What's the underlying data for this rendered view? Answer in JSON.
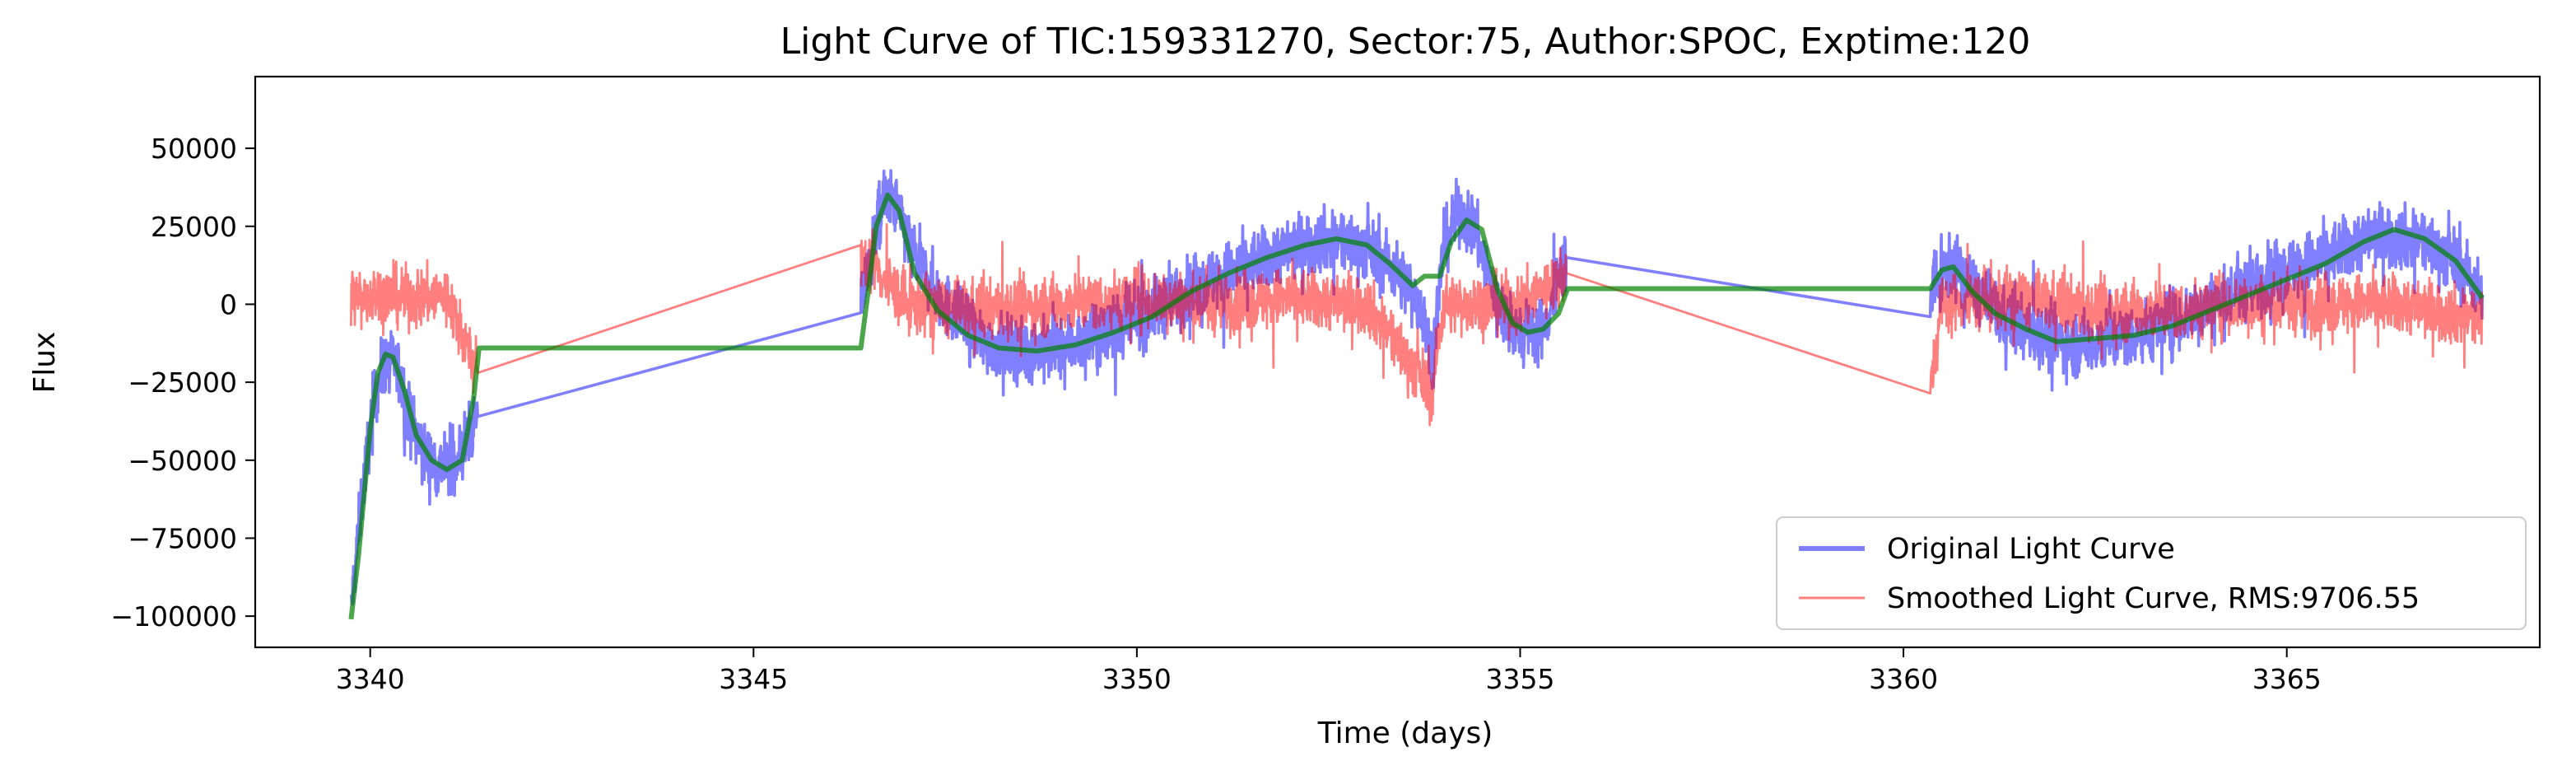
{
  "chart_data": {
    "type": "line",
    "title": "Light Curve of TIC:159331270, Sector:75, Author:SPOC, Exptime:120",
    "xlabel": "Time (days)",
    "ylabel": "Flux",
    "xlim": [
      3338.5,
      3368.3
    ],
    "ylim": [
      -110000,
      73000
    ],
    "xticks": [
      3340,
      3345,
      3350,
      3355,
      3360,
      3365
    ],
    "xtick_labels": [
      "3340",
      "3345",
      "3350",
      "3355",
      "3360",
      "3365"
    ],
    "yticks": [
      -100000,
      -75000,
      -50000,
      -25000,
      0,
      25000,
      50000
    ],
    "ytick_labels": [
      "−100000",
      "−75000",
      "−50000",
      "−25000",
      "0",
      "25000",
      "50000"
    ],
    "grid": false,
    "legend_position": "lower-right",
    "segments": [
      [
        3339.75,
        3341.4
      ],
      [
        3346.4,
        3355.6
      ],
      [
        3360.35,
        3367.55
      ]
    ],
    "series": [
      {
        "name": "Original Light Curve",
        "color": "#0000ff",
        "opacity": 0.5,
        "style": "noisy",
        "noise_amplitude": 9000,
        "trend": [
          [
            3339.75,
            -98000
          ],
          [
            3339.9,
            -60000
          ],
          [
            3340.05,
            -30000
          ],
          [
            3340.2,
            -18000
          ],
          [
            3340.35,
            -20000
          ],
          [
            3340.5,
            -35000
          ],
          [
            3340.7,
            -48000
          ],
          [
            3340.9,
            -52000
          ],
          [
            3341.1,
            -51000
          ],
          [
            3341.25,
            -45000
          ],
          [
            3341.4,
            -36000
          ],
          [
            3346.4,
            0
          ],
          [
            3346.55,
            18000
          ],
          [
            3346.7,
            34000
          ],
          [
            3346.85,
            32000
          ],
          [
            3347.1,
            15000
          ],
          [
            3347.5,
            0
          ],
          [
            3348.0,
            -12000
          ],
          [
            3348.5,
            -15000
          ],
          [
            3349.0,
            -14000
          ],
          [
            3349.5,
            -10000
          ],
          [
            3350.0,
            -5000
          ],
          [
            3350.5,
            2000
          ],
          [
            3351.0,
            8000
          ],
          [
            3351.5,
            13000
          ],
          [
            3352.0,
            18000
          ],
          [
            3352.5,
            21000
          ],
          [
            3353.0,
            18000
          ],
          [
            3353.4,
            10000
          ],
          [
            3353.7,
            0
          ],
          [
            3353.85,
            -18000
          ],
          [
            3354.0,
            18000
          ],
          [
            3354.2,
            30000
          ],
          [
            3354.4,
            25000
          ],
          [
            3354.7,
            0
          ],
          [
            3355.0,
            -10000
          ],
          [
            3355.3,
            -8000
          ],
          [
            3355.6,
            15000
          ],
          [
            3360.35,
            3000
          ],
          [
            3360.6,
            13000
          ],
          [
            3360.9,
            6000
          ],
          [
            3361.3,
            -5000
          ],
          [
            3361.8,
            -10000
          ],
          [
            3362.2,
            -13000
          ],
          [
            3362.8,
            -11000
          ],
          [
            3363.5,
            -6000
          ],
          [
            3364.2,
            2000
          ],
          [
            3364.8,
            9000
          ],
          [
            3365.5,
            15000
          ],
          [
            3366.1,
            22000
          ],
          [
            3366.7,
            21000
          ],
          [
            3367.2,
            14000
          ],
          [
            3367.55,
            3000
          ]
        ]
      },
      {
        "name": "Smoothed Light Curve, RMS:9706.55",
        "color": "#ff0000",
        "opacity": 0.5,
        "style": "noisy",
        "noise_amplitude": 8500,
        "trend": [
          [
            3339.75,
            2000
          ],
          [
            3340.0,
            3000
          ],
          [
            3340.5,
            2000
          ],
          [
            3341.0,
            3000
          ],
          [
            3341.4,
            -22000
          ],
          [
            3346.4,
            12000
          ],
          [
            3346.55,
            15000
          ],
          [
            3346.7,
            8000
          ],
          [
            3347.0,
            0
          ],
          [
            3348.0,
            -2000
          ],
          [
            3349.0,
            0
          ],
          [
            3350.0,
            2000
          ],
          [
            3351.0,
            0
          ],
          [
            3352.0,
            2000
          ],
          [
            3353.0,
            0
          ],
          [
            3353.85,
            -28000
          ],
          [
            3354.0,
            0
          ],
          [
            3355.0,
            0
          ],
          [
            3355.6,
            10000
          ],
          [
            3360.35,
            -28000
          ],
          [
            3360.5,
            0
          ],
          [
            3361.5,
            2000
          ],
          [
            3362.5,
            -2000
          ],
          [
            3363.5,
            -2000
          ],
          [
            3364.5,
            0
          ],
          [
            3365.5,
            0
          ],
          [
            3366.5,
            0
          ],
          [
            3367.55,
            -5000
          ]
        ]
      },
      {
        "name": "Trend",
        "color": "#008000",
        "opacity": 0.7,
        "style": "smooth",
        "trend": [
          [
            3339.75,
            -101000
          ],
          [
            3339.85,
            -80000
          ],
          [
            3340.0,
            -40000
          ],
          [
            3340.1,
            -22000
          ],
          [
            3340.2,
            -16000
          ],
          [
            3340.3,
            -17000
          ],
          [
            3340.45,
            -28000
          ],
          [
            3340.6,
            -42000
          ],
          [
            3340.8,
            -50000
          ],
          [
            3341.0,
            -53000
          ],
          [
            3341.2,
            -50000
          ],
          [
            3341.35,
            -30000
          ],
          [
            3341.42,
            -14000
          ],
          [
            3346.4,
            -14000
          ],
          [
            3346.5,
            5000
          ],
          [
            3346.6,
            25000
          ],
          [
            3346.75,
            35000
          ],
          [
            3346.9,
            30000
          ],
          [
            3347.1,
            10000
          ],
          [
            3347.4,
            -2000
          ],
          [
            3347.8,
            -10000
          ],
          [
            3348.2,
            -14000
          ],
          [
            3348.7,
            -15000
          ],
          [
            3349.2,
            -13000
          ],
          [
            3349.7,
            -9000
          ],
          [
            3350.2,
            -4000
          ],
          [
            3350.7,
            4000
          ],
          [
            3351.2,
            10000
          ],
          [
            3351.7,
            15000
          ],
          [
            3352.2,
            19000
          ],
          [
            3352.6,
            21000
          ],
          [
            3353.0,
            19000
          ],
          [
            3353.3,
            13000
          ],
          [
            3353.6,
            6000
          ],
          [
            3353.75,
            9000
          ],
          [
            3353.95,
            9000
          ],
          [
            3354.1,
            20000
          ],
          [
            3354.3,
            27000
          ],
          [
            3354.5,
            24000
          ],
          [
            3354.7,
            5000
          ],
          [
            3354.9,
            -6000
          ],
          [
            3355.1,
            -9000
          ],
          [
            3355.3,
            -8000
          ],
          [
            3355.5,
            -3000
          ],
          [
            3355.62,
            5000
          ],
          [
            3360.35,
            5000
          ],
          [
            3360.5,
            11000
          ],
          [
            3360.65,
            12000
          ],
          [
            3360.9,
            4000
          ],
          [
            3361.2,
            -3000
          ],
          [
            3361.6,
            -8000
          ],
          [
            3362.0,
            -12000
          ],
          [
            3362.5,
            -11000
          ],
          [
            3363.0,
            -10000
          ],
          [
            3363.5,
            -7000
          ],
          [
            3364.0,
            -2000
          ],
          [
            3364.5,
            3000
          ],
          [
            3365.0,
            8000
          ],
          [
            3365.5,
            13000
          ],
          [
            3366.0,
            20000
          ],
          [
            3366.4,
            24000
          ],
          [
            3366.8,
            21000
          ],
          [
            3367.2,
            14000
          ],
          [
            3367.55,
            2000
          ]
        ]
      }
    ],
    "legend": [
      {
        "label": "Original Light Curve",
        "color": "#0000ff",
        "opacity": 0.5,
        "width": 6
      },
      {
        "label": "Smoothed Light Curve, RMS:9706.55",
        "color": "#ff0000",
        "opacity": 0.5,
        "width": 3
      }
    ]
  }
}
